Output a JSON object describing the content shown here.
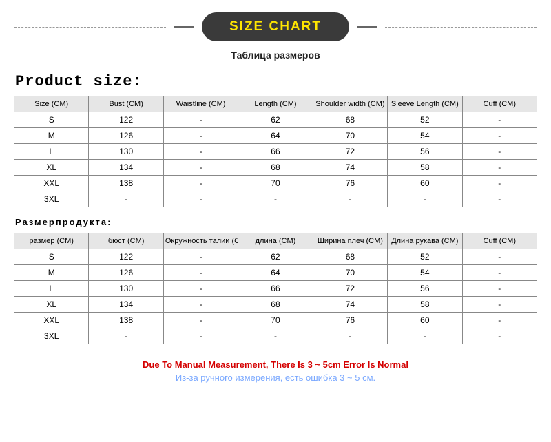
{
  "header": {
    "title": "SIZE CHART",
    "subtitle_ru": "Таблица размеров"
  },
  "table_en": {
    "section_title": "Product size:",
    "columns": [
      "Size (CM)",
      "Bust (CM)",
      "Waistline (CM)",
      "Length (CM)",
      "Shoulder width (CM)",
      "Sleeve Length (CM)",
      "Cuff (CM)"
    ],
    "rows": [
      [
        "S",
        "122",
        "-",
        "62",
        "68",
        "52",
        "-"
      ],
      [
        "M",
        "126",
        "-",
        "64",
        "70",
        "54",
        "-"
      ],
      [
        "L",
        "130",
        "-",
        "66",
        "72",
        "56",
        "-"
      ],
      [
        "XL",
        "134",
        "-",
        "68",
        "74",
        "58",
        "-"
      ],
      [
        "XXL",
        "138",
        "-",
        "70",
        "76",
        "60",
        "-"
      ],
      [
        "3XL",
        "-",
        "-",
        "-",
        "-",
        "-",
        "-"
      ]
    ]
  },
  "table_ru": {
    "section_title": "Размерпродукта:",
    "columns": [
      "размер (CM)",
      "бюст (CM)",
      "Окружность талии (CM)",
      "длина (CM)",
      "Ширина плеч (CM)",
      "Длина рукава (CM)",
      "Cuff (CM)"
    ],
    "rows": [
      [
        "S",
        "122",
        "-",
        "62",
        "68",
        "52",
        "-"
      ],
      [
        "M",
        "126",
        "-",
        "64",
        "70",
        "54",
        "-"
      ],
      [
        "L",
        "130",
        "-",
        "66",
        "72",
        "56",
        "-"
      ],
      [
        "XL",
        "134",
        "-",
        "68",
        "74",
        "58",
        "-"
      ],
      [
        "XXL",
        "138",
        "-",
        "70",
        "76",
        "60",
        "-"
      ],
      [
        "3XL",
        "-",
        "-",
        "-",
        "-",
        "-",
        "-"
      ]
    ]
  },
  "notes": {
    "line1": "Due To Manual Measurement, There Is 3 ~ 5cm Error Is Normal",
    "line2": "Из-за ручного измерения, есть ошибка 3 ~ 5 см."
  },
  "styling": {
    "pill_bg": "#3a3a3a",
    "pill_text": "#ffe600",
    "header_bg": "#e6e6e6",
    "border_color": "#888888",
    "note1_color": "#d40000",
    "note2_color": "#7aa8ff",
    "background": "#ffffff"
  }
}
